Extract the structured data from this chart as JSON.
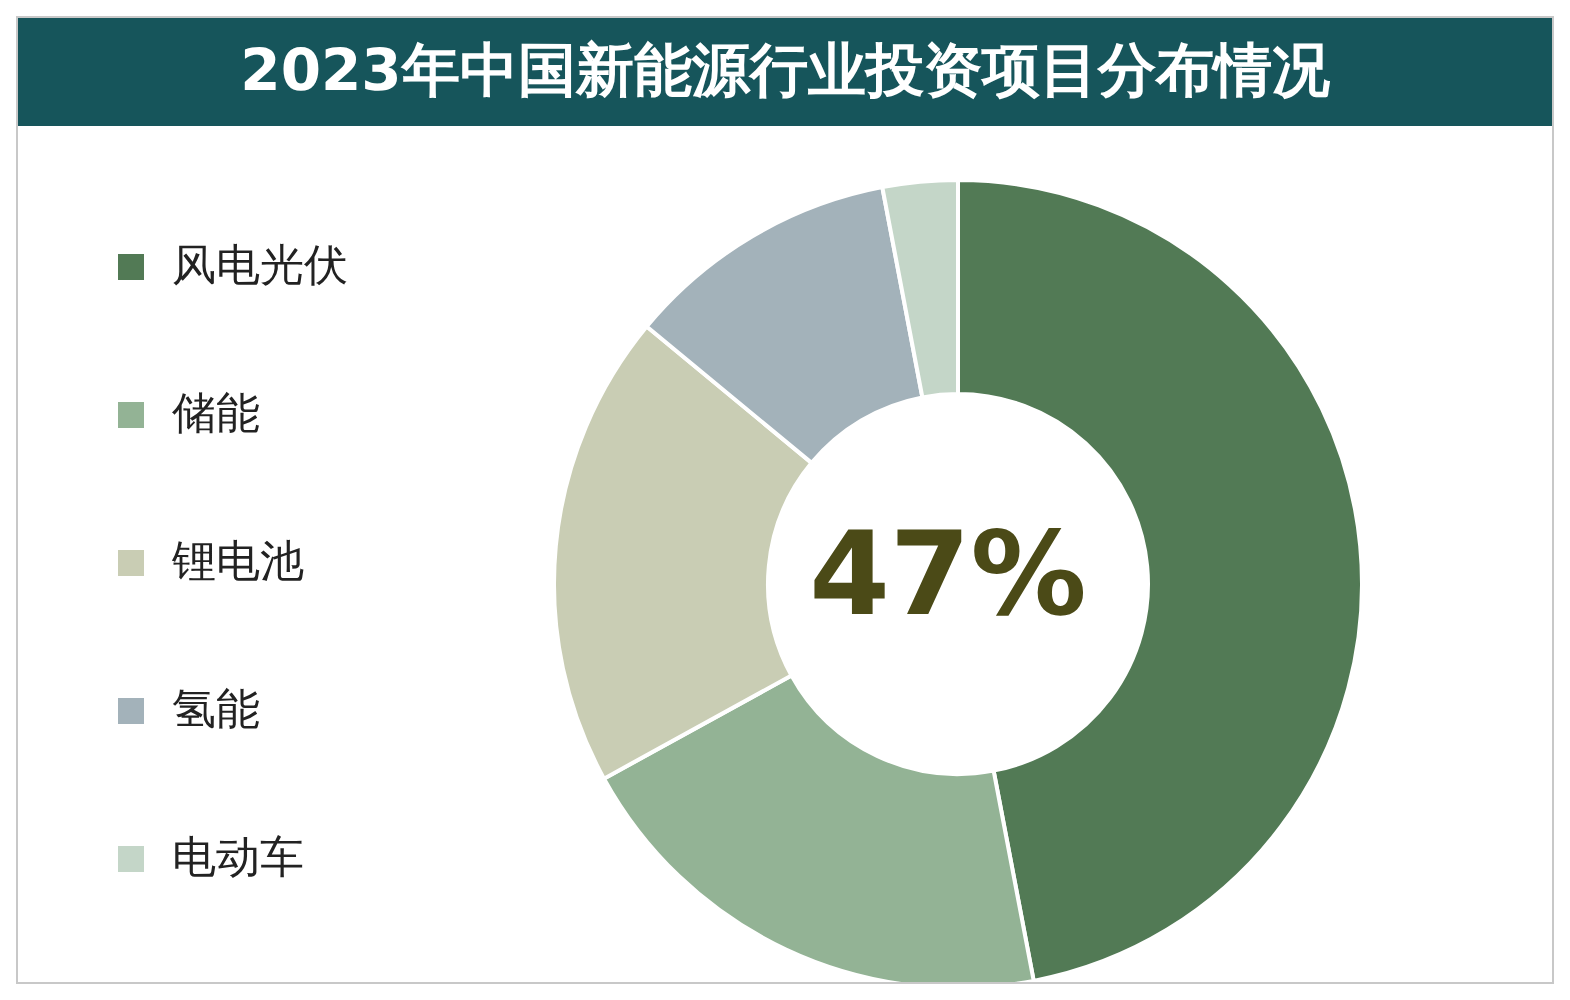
{
  "chart_data": {
    "type": "donut",
    "title": "2023年中国新能源行业投资项目分布情况",
    "categories": [
      "风电光伏",
      "储能",
      "锂电池",
      "氢能",
      "电动车"
    ],
    "values": [
      47,
      20,
      19,
      11,
      3
    ],
    "colors": [
      "#527a55",
      "#93b395",
      "#c9cdb4",
      "#a3b2ba",
      "#c4d6c8"
    ],
    "legend": "left",
    "annotations": [
      "47%"
    ]
  }
}
